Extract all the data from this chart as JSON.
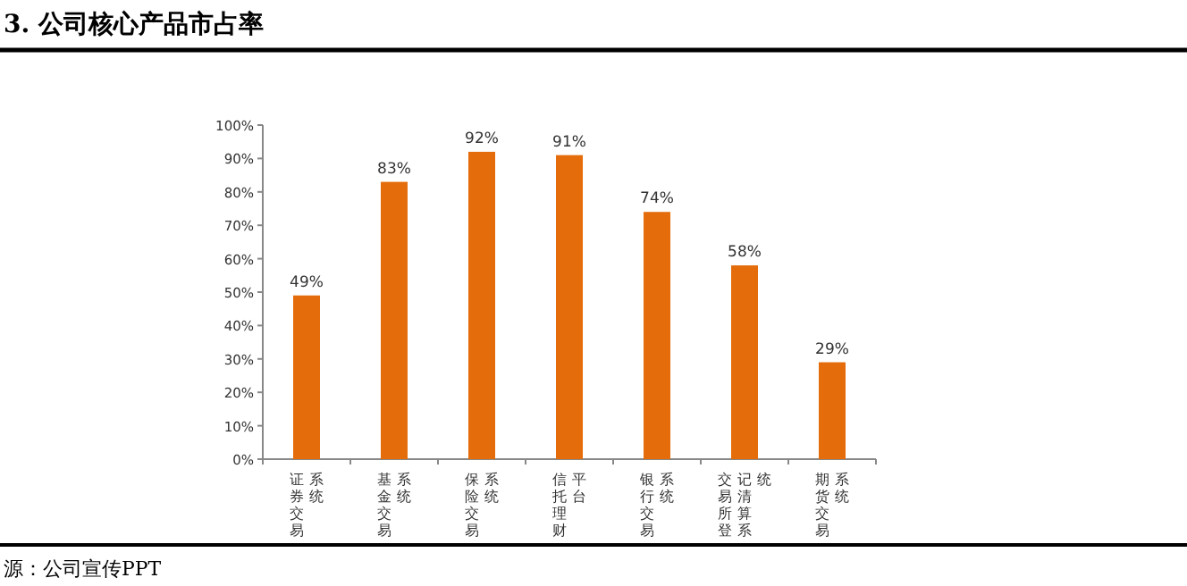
{
  "chart_data": {
    "type": "bar",
    "title": "3. 公司核心产品市占率",
    "categories": [
      "证券交易系统",
      "基金交易系统",
      "保险交易系统",
      "信托理财平台",
      "银行交易系统",
      "交易所登记清算系统",
      "期货交易系统"
    ],
    "values": [
      49,
      83,
      92,
      91,
      74,
      58,
      29
    ],
    "color": "#e46c0a",
    "ylim": [
      0,
      100
    ],
    "yticks": [
      {
        "value": 0,
        "label": "0%"
      },
      {
        "value": 10,
        "label": "10%"
      },
      {
        "value": 20,
        "label": "20%"
      },
      {
        "value": 30,
        "label": "30%"
      },
      {
        "value": 40,
        "label": "40%"
      },
      {
        "value": 50,
        "label": "50%"
      },
      {
        "value": 60,
        "label": "60%"
      },
      {
        "value": 70,
        "label": "70%"
      },
      {
        "value": 80,
        "label": "80%"
      },
      {
        "value": 90,
        "label": "90%"
      },
      {
        "value": 100,
        "label": "100%"
      }
    ],
    "value_labels": [
      "49%",
      "83%",
      "92%",
      "91%",
      "74%",
      "58%",
      "29%"
    ],
    "annotations": [
      "源：公司宣传PPT"
    ]
  }
}
